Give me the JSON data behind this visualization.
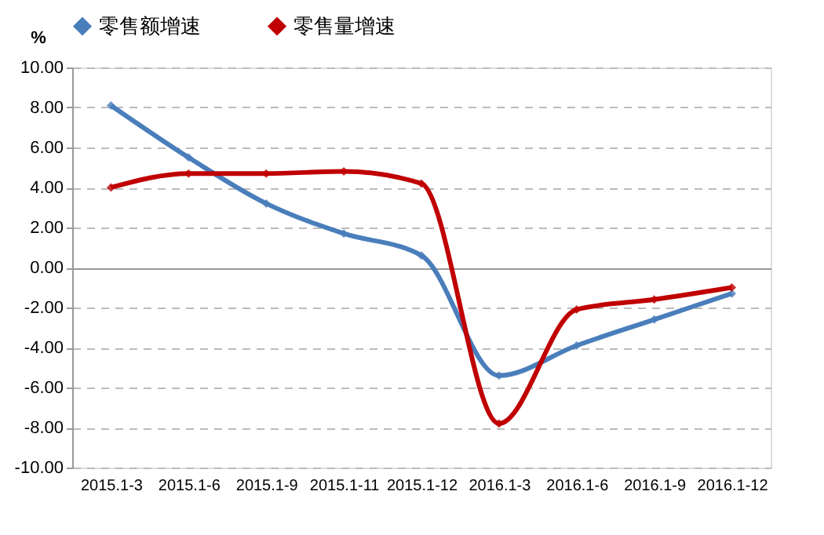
{
  "chart_data": {
    "type": "line",
    "ylabel": "%",
    "categories": [
      "2015.1-3",
      "2015.1-6",
      "2015.1-9",
      "2015.1-11",
      "2015.1-12",
      "2016.1-3",
      "2016.1-6",
      "2016.1-9",
      "2016.1-12"
    ],
    "series": [
      {
        "name": "零售额增速",
        "color": "#4a7ebb",
        "values": [
          8.1,
          5.5,
          3.2,
          1.7,
          0.6,
          -5.4,
          -3.9,
          -2.6,
          -1.3
        ]
      },
      {
        "name": "零售量增速",
        "color": "#c00000",
        "values": [
          4.0,
          4.7,
          4.7,
          4.8,
          4.2,
          -7.8,
          -2.1,
          -1.6,
          -1.0
        ]
      }
    ],
    "ylim": [
      -10,
      10
    ],
    "yticks": [
      {
        "value": -10,
        "label": "-10.00"
      },
      {
        "value": -8,
        "label": "-8.00"
      },
      {
        "value": -6,
        "label": "-6.00"
      },
      {
        "value": -4,
        "label": "-4.00"
      },
      {
        "value": -2,
        "label": "-2.00"
      },
      {
        "value": 0,
        "label": "0.00"
      },
      {
        "value": 2,
        "label": "2.00"
      },
      {
        "value": 4,
        "label": "4.00"
      },
      {
        "value": 6,
        "label": "6.00"
      },
      {
        "value": 8,
        "label": "8.00"
      },
      {
        "value": 10,
        "label": "10.00"
      }
    ],
    "grid": "y",
    "legend": "top",
    "marker": "diamond",
    "line_style": "solid"
  }
}
